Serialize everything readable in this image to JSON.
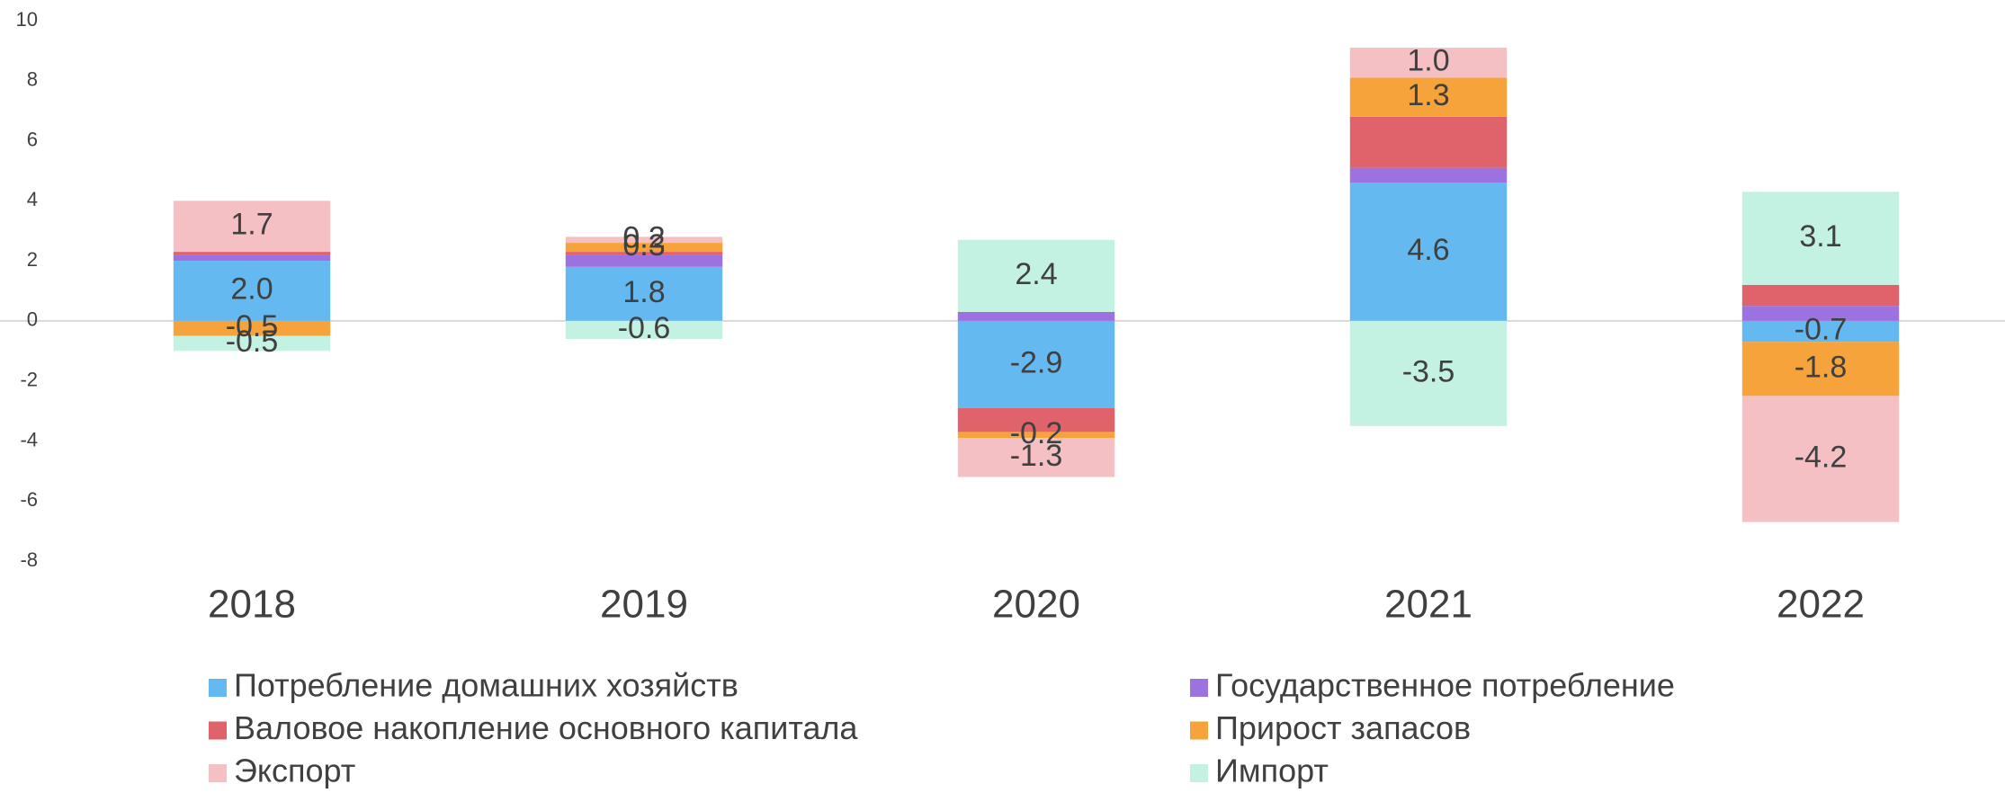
{
  "chart_data": {
    "type": "stacked_bar",
    "categories": [
      "2018",
      "2019",
      "2020",
      "2021",
      "2022"
    ],
    "ylim": [
      -8,
      10
    ],
    "yticks": [
      -8,
      -6,
      -4,
      -2,
      0,
      2,
      4,
      6,
      8,
      10
    ],
    "series": [
      {
        "name": "Потребление домашних хозяйств",
        "color": "#63b9f0",
        "values": [
          2.0,
          1.8,
          -2.9,
          4.6,
          -0.7
        ],
        "value_labels": [
          "2.0",
          "1.8",
          "-2.9",
          "4.6",
          "-0.7"
        ]
      },
      {
        "name": "Государственное потребление",
        "color": "#9b72e0",
        "values": [
          0.2,
          0.4,
          0.3,
          0.5,
          0.5
        ]
      },
      {
        "name": "Валовое накопление основного капитала",
        "color": "#e0636b",
        "values": [
          0.1,
          0.1,
          -0.8,
          1.7,
          0.7
        ]
      },
      {
        "name": "Прирост запасов",
        "color": "#f5a33a",
        "values": [
          -0.5,
          0.3,
          -0.2,
          1.3,
          -1.8
        ],
        "value_labels": [
          "-0.5",
          "0.3",
          "-0.2",
          "1.3",
          "-1.8"
        ]
      },
      {
        "name": "Экспорт",
        "color": "#f4c0c4",
        "values": [
          1.7,
          0.2,
          -1.3,
          1.0,
          -4.2
        ],
        "value_labels": [
          "1.7",
          "0.2",
          "-1.3",
          "1.0",
          "-4.2"
        ]
      },
      {
        "name": "Импорт",
        "color": "#c3f2e2",
        "values": [
          -0.5,
          -0.6,
          2.4,
          -3.5,
          3.1
        ],
        "value_labels": [
          "-0.5",
          "-0.6",
          "2.4",
          "-3.5",
          "3.1"
        ]
      }
    ]
  }
}
